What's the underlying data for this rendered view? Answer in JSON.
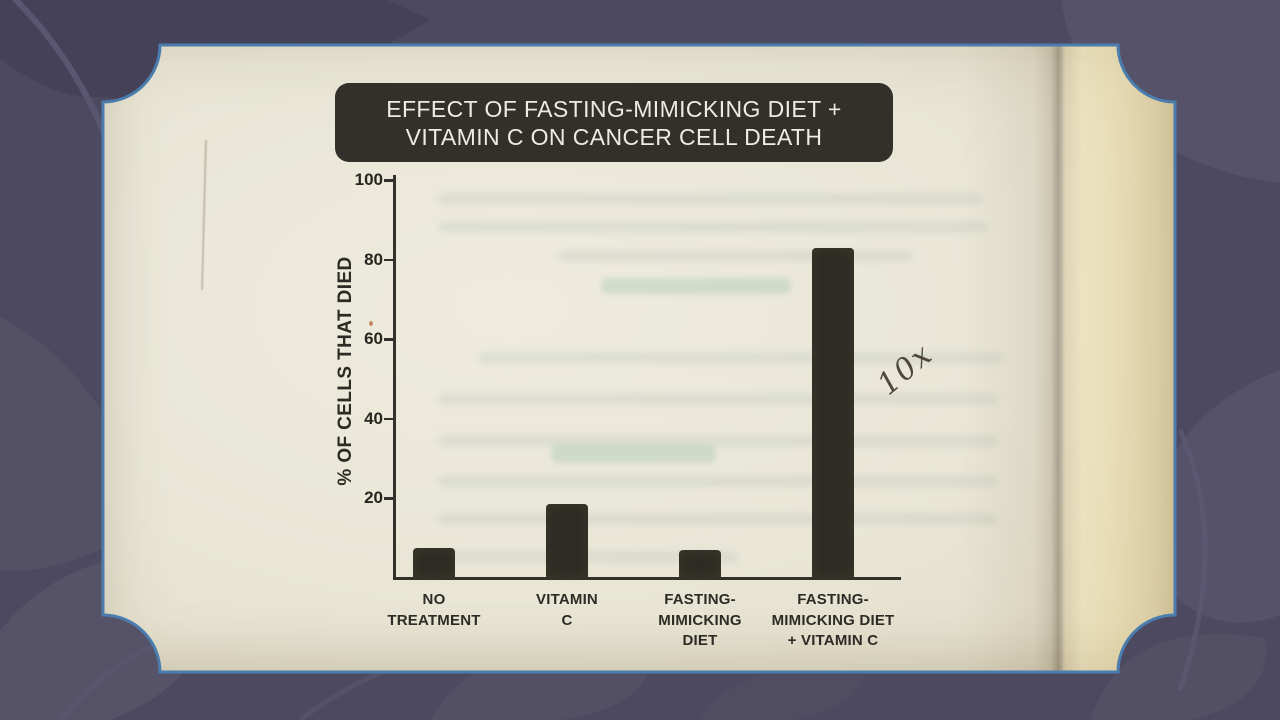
{
  "scene": {
    "description_colors": {
      "wallpaper": "#4c4960",
      "wallpaper_leaf_light": "#565369",
      "wallpaper_leaf_dark": "#454159",
      "frame_border": "#4a7dae",
      "page_cream": "#e9e6d6",
      "ink": "#2e2c25",
      "title_box": "#31302a",
      "title_text": "#edebe2"
    }
  },
  "chart_data": {
    "type": "bar",
    "title": "EFFECT OF FASTING-MIMICKING DIET + VITAMIN C ON CANCER CELL DEATH",
    "title_line1": "EFFECT OF FASTING-MIMICKING DIET +",
    "title_line2": "VITAMIN C ON CANCER CELL DEATH",
    "ylabel": "% OF CELLS THAT DIED",
    "xlabel": "",
    "ylim": [
      0,
      100
    ],
    "yticks": [
      100,
      80,
      60,
      40,
      20
    ],
    "categories": [
      "NO TREATMENT",
      "VITAMIN C",
      "FASTING-MIMICKING DIET",
      "FASTING-MIMICKING DIET + VITAMIN C"
    ],
    "category_lines": [
      [
        "NO",
        "TREATMENT"
      ],
      [
        "VITAMIN",
        "C"
      ],
      [
        "FASTING-",
        "MIMICKING",
        "DIET"
      ],
      [
        "FASTING-",
        "MIMICKING DIET",
        "+ VITAMIN C"
      ]
    ],
    "values": [
      7.5,
      18.5,
      7,
      83
    ],
    "bar_color": "#2e2c25",
    "grid": false,
    "legend_position": "none",
    "handwritten_annotation": "10x"
  }
}
